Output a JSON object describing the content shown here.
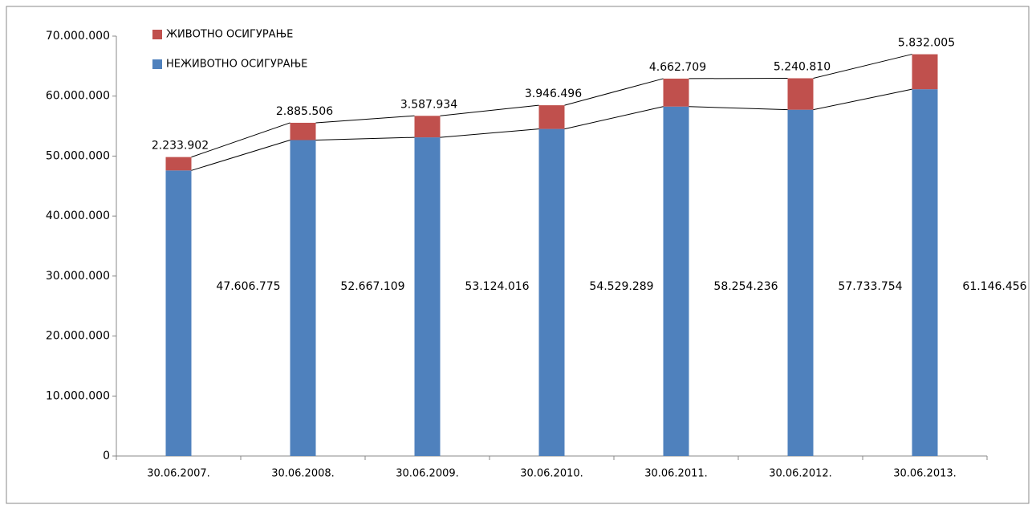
{
  "chart_data": {
    "type": "stacked_bar",
    "categories": [
      "30.06.2007.",
      "30.06.2008.",
      "30.06.2009.",
      "30.06.2010.",
      "30.06.2011.",
      "30.06.2012.",
      "30.06.2013."
    ],
    "series": [
      {
        "name": "НЕЖИВОТНО ОСИГУРАЊЕ",
        "color": "#4f81bd",
        "values": [
          47606775,
          52667109,
          53124016,
          54529289,
          58254236,
          57733754,
          61146456
        ],
        "value_labels": [
          "47.606.775",
          "52.667.109",
          "53.124.016",
          "54.529.289",
          "58.254.236",
          "57.733.754",
          "61.146.456"
        ]
      },
      {
        "name": "ЖИВОТНО ОСИГУРАЊЕ",
        "color": "#c0504d",
        "values": [
          2233902,
          2885506,
          3587934,
          3946496,
          4662709,
          5240810,
          5832005
        ],
        "value_labels": [
          "2.233.902",
          "2.885.506",
          "3.587.934",
          "3.946.496",
          "4.662.709",
          "5.240.810",
          "5.832.005"
        ]
      }
    ],
    "ylim": [
      0,
      70000000
    ],
    "yticks": [
      0,
      {
        "value": 10000000,
        "label": "10.000.000"
      },
      {
        "value": 20000000,
        "label": "20.000.000"
      },
      {
        "value": 30000000,
        "label": "30.000.000"
      },
      {
        "value": 40000000,
        "label": "40.000.000"
      },
      {
        "value": 50000000,
        "label": "50.000.000"
      },
      {
        "value": 60000000,
        "label": "60.000.000"
      },
      {
        "value": 70000000,
        "label": "70.000.000"
      }
    ],
    "grid": false,
    "legend": "top-left",
    "series_lines": true
  }
}
